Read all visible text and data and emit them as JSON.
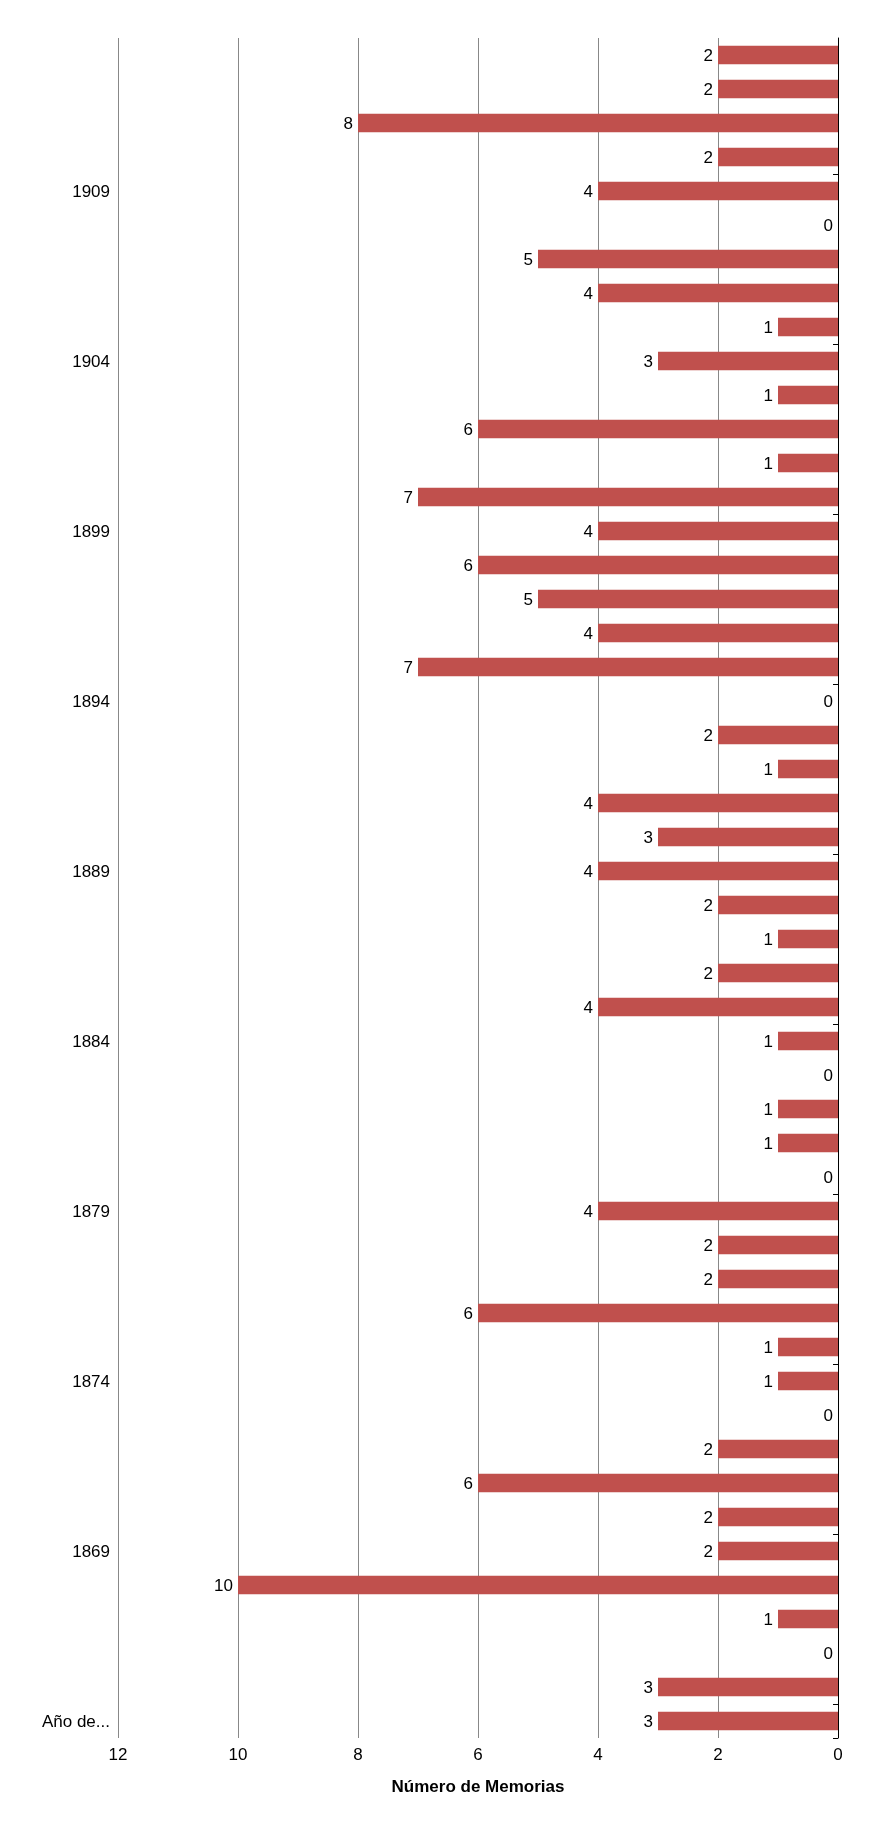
{
  "chart_data": {
    "type": "bar",
    "orientation": "horizontal",
    "xlabel": "Número de Memorias",
    "categories": [
      null,
      null,
      null,
      null,
      "1909",
      null,
      null,
      null,
      null,
      "1904",
      null,
      null,
      null,
      null,
      "1899",
      null,
      null,
      null,
      null,
      "1894",
      null,
      null,
      null,
      null,
      "1889",
      null,
      null,
      null,
      null,
      "1884",
      null,
      null,
      null,
      null,
      "1879",
      null,
      null,
      null,
      null,
      "1874",
      null,
      null,
      null,
      null,
      "1869",
      null,
      null,
      null,
      null,
      "Año de..."
    ],
    "values": [
      2,
      2,
      8,
      2,
      4,
      0,
      5,
      4,
      1,
      3,
      1,
      6,
      1,
      7,
      4,
      6,
      5,
      4,
      7,
      0,
      2,
      1,
      4,
      3,
      4,
      2,
      1,
      2,
      4,
      1,
      0,
      1,
      1,
      0,
      4,
      2,
      2,
      6,
      1,
      1,
      0,
      2,
      6,
      2,
      2,
      10,
      1,
      0,
      3,
      3
    ],
    "color": "#c0504d",
    "xlim": [
      12,
      0
    ],
    "xticks": [
      0,
      2,
      4,
      6,
      8,
      10,
      12
    ],
    "grid": "x",
    "data_labels": true
  }
}
